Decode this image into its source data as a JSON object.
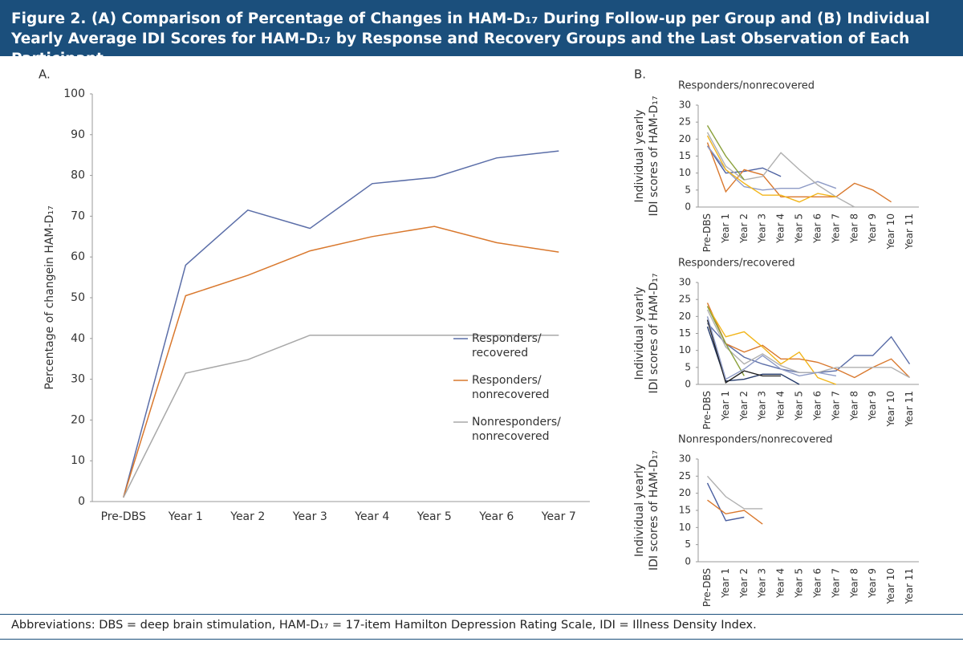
{
  "figure_title": "Figure 2. (A) Comparison of Percentage of Changes in HAM-D₁₇ During Follow-up per Group and (B) Individual Yearly Average IDI Scores for HAM-D₁₇ by Response and Recovery Groups and the Last Observation of Each Participant",
  "footnote": "Abbreviations: DBS = deep brain stimulation, HAM-D₁₇ = 17-item Hamilton Depression Rating Scale, IDI = Illness Density Index.",
  "chart_data": [
    {
      "type": "line",
      "panel_label": "A.",
      "y_label": [
        "Percentage of changein HAM-D₁₇"
      ],
      "categories": [
        "Pre-DBS",
        "Year 1",
        "Year 2",
        "Year 3",
        "Year 4",
        "Year 5",
        "Year 6",
        "Year 7"
      ],
      "ylim": [
        0,
        100
      ],
      "yticks": [
        0,
        10,
        20,
        30,
        40,
        50,
        60,
        70,
        80,
        90,
        100
      ],
      "legend": "lower right",
      "series": [
        {
          "name": "Responders/recovered",
          "color": "#5b6ea8",
          "values": [
            1,
            58,
            71.5,
            67,
            78,
            79.5,
            84.3,
            86
          ]
        },
        {
          "name": "Responders/nonrecovered",
          "color": "#d9782d",
          "values": [
            1,
            50.5,
            55.5,
            61.5,
            65,
            67.5,
            63.5,
            61.2
          ]
        },
        {
          "name": "Nonresponders/nonrecovered",
          "color": "#a8a8a8",
          "values": [
            1,
            31.5,
            34.8,
            40.8,
            40.8,
            40.8,
            40.8,
            40.8
          ]
        }
      ]
    },
    {
      "type": "line",
      "panel_label": "B.",
      "title": "Responders/nonrecovered",
      "y_label": [
        "Individual yearly",
        "IDI scores of HAM-D₁₇"
      ],
      "categories": [
        "Pre-DBS",
        "Year 1",
        "Year 2",
        "Year 3",
        "Year 4",
        "Year 5",
        "Year 6",
        "Year 7",
        "Year 8",
        "Year 9",
        "Year 10",
        "Year 11"
      ],
      "ylim": [
        0,
        30
      ],
      "yticks": [
        0,
        5,
        10,
        15,
        20,
        25,
        30
      ],
      "series": [
        {
          "color": "#4a5fa0",
          "values": [
            18,
            10,
            10.5,
            11.5,
            9,
            null,
            null,
            null,
            null,
            null,
            null,
            null
          ]
        },
        {
          "color": "#d9782d",
          "values": [
            19,
            4.5,
            11,
            9.5,
            3,
            3,
            3,
            3,
            7,
            5,
            1.5,
            null
          ]
        },
        {
          "color": "#8e9bc6",
          "values": [
            18,
            11,
            6,
            5,
            5.5,
            5.5,
            7.5,
            5.5,
            null,
            null,
            null,
            null
          ]
        },
        {
          "color": "#b0b0b0",
          "values": [
            22,
            12,
            8,
            9,
            16,
            11,
            6.5,
            3,
            0,
            null,
            null,
            null
          ]
        },
        {
          "color": "#8aa03a",
          "values": [
            24,
            15,
            8,
            null,
            null,
            null,
            null,
            null,
            null,
            null,
            null,
            null
          ]
        },
        {
          "color": "#f2b61c",
          "values": [
            21,
            11,
            7,
            3.5,
            3.5,
            1.5,
            4,
            3,
            null,
            null,
            null,
            null
          ]
        }
      ]
    },
    {
      "type": "line",
      "title": "Responders/recovered",
      "y_label": [
        "Individual yearly",
        "IDI scores of HAM-D₁₇"
      ],
      "categories": [
        "Pre-DBS",
        "Year 1",
        "Year 2",
        "Year 3",
        "Year 4",
        "Year 5",
        "Year 6",
        "Year 7",
        "Year 8",
        "Year 9",
        "Year 10",
        "Year 11"
      ],
      "ylim": [
        0,
        30
      ],
      "yticks": [
        0,
        5,
        10,
        15,
        20,
        25,
        30
      ],
      "series": [
        {
          "color": "#5b6ea8",
          "values": [
            18,
            12,
            8,
            6,
            4.5,
            3.5,
            3.5,
            4,
            8.5,
            8.5,
            14,
            6
          ]
        },
        {
          "color": "#d9782d",
          "values": [
            24,
            12,
            9.5,
            11.5,
            7.5,
            7.5,
            6.5,
            4.5,
            2,
            5,
            7.5,
            2
          ]
        },
        {
          "color": "#f2b61c",
          "values": [
            23,
            14,
            15.5,
            11,
            6,
            9.5,
            2,
            0,
            null,
            null,
            null,
            null
          ]
        },
        {
          "color": "#b0b0b0",
          "values": [
            22,
            11,
            6,
            9,
            5.5,
            3.5,
            3.5,
            5,
            5,
            5,
            5,
            2
          ]
        },
        {
          "color": "#243a6b",
          "values": [
            17,
            1,
            1.5,
            3,
            3,
            0,
            null,
            null,
            null,
            null,
            null,
            null
          ]
        },
        {
          "color": "#8aa03a",
          "values": [
            23,
            12,
            2.5,
            null,
            null,
            null,
            null,
            null,
            null,
            null,
            null,
            null
          ]
        },
        {
          "color": "#222222",
          "values": [
            19,
            0.5,
            4,
            2.5,
            2.5,
            null,
            null,
            null,
            null,
            null,
            null,
            null
          ]
        },
        {
          "color": "#8e9bc6",
          "values": [
            20,
            1.5,
            4.5,
            8.5,
            4.5,
            2.5,
            3.5,
            2.5,
            null,
            null,
            null,
            null
          ]
        }
      ]
    },
    {
      "type": "line",
      "title": "Nonresponders/nonrecovered",
      "y_label": [
        "Individual yearly",
        "IDI scores of HAM-D₁₇"
      ],
      "categories": [
        "Pre-DBS",
        "Year 1",
        "Year 2",
        "Year 3",
        "Year 4",
        "Year 5",
        "Year 6",
        "Year 7",
        "Year 8",
        "Year 9",
        "Year 10",
        "Year 11"
      ],
      "ylim": [
        0,
        30
      ],
      "yticks": [
        0,
        5,
        10,
        15,
        20,
        25,
        30
      ],
      "series": [
        {
          "color": "#4a5fa0",
          "values": [
            23,
            12,
            13,
            null,
            null,
            null,
            null,
            null,
            null,
            null,
            null,
            null
          ]
        },
        {
          "color": "#d9782d",
          "values": [
            18,
            14,
            15,
            11,
            null,
            null,
            null,
            null,
            null,
            null,
            null,
            null
          ]
        },
        {
          "color": "#b0b0b0",
          "values": [
            25,
            19,
            15.5,
            15.5,
            null,
            null,
            null,
            null,
            null,
            null,
            null,
            null
          ]
        }
      ]
    }
  ]
}
